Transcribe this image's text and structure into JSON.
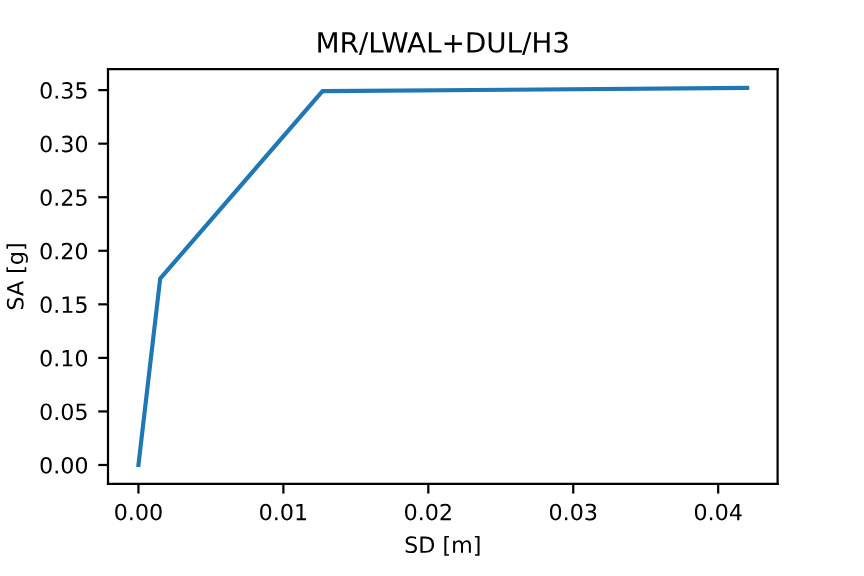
{
  "chart_data": {
    "type": "line",
    "title": "MR/LWAL+DUL/H3",
    "xlabel": "SD [m]",
    "ylabel": "SA [g]",
    "x": [
      0,
      0.0015,
      0.0127,
      0.042
    ],
    "series": [
      {
        "color": "#1f77b4",
        "values": [
          0,
          0.174,
          0.349,
          0.352
        ]
      }
    ],
    "xlim": [
      -0.0021,
      0.0441
    ],
    "ylim": [
      -0.0176,
      0.3696
    ],
    "xticks": [
      {
        "value": 0,
        "label": "0.00"
      },
      {
        "value": 0.01,
        "label": "0.01"
      },
      {
        "value": 0.02,
        "label": "0.02"
      },
      {
        "value": 0.03,
        "label": "0.03"
      },
      {
        "value": 0.04,
        "label": "0.04"
      }
    ],
    "yticks": [
      {
        "value": 0,
        "label": "0.00"
      },
      {
        "value": 0.05,
        "label": "0.05"
      },
      {
        "value": 0.1,
        "label": "0.10"
      },
      {
        "value": 0.15,
        "label": "0.15"
      },
      {
        "value": 0.2,
        "label": "0.20"
      },
      {
        "value": 0.25,
        "label": "0.25"
      },
      {
        "value": 0.3,
        "label": "0.30"
      },
      {
        "value": 0.35,
        "label": "0.35"
      }
    ],
    "grid": false,
    "legend": false,
    "marker": "none",
    "line_style": "solid"
  }
}
